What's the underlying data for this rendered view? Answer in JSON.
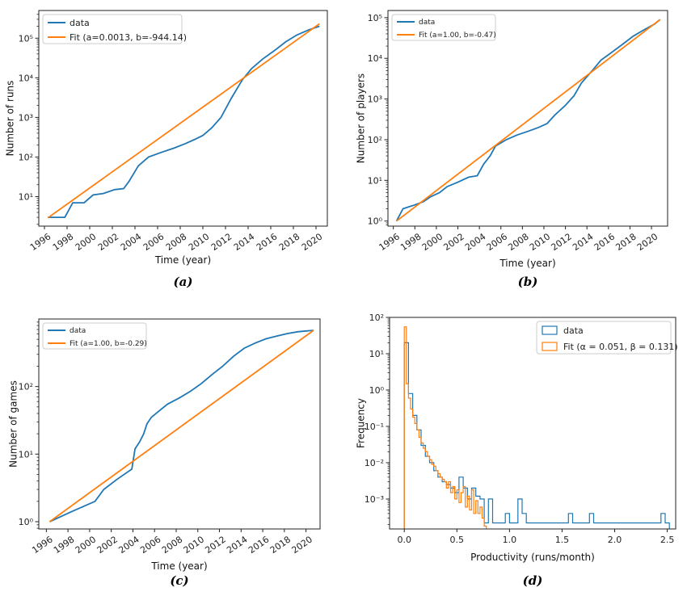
{
  "chart_data": [
    {
      "id": "a",
      "type": "line",
      "caption": "(a)",
      "xlabel": "Time (year)",
      "ylabel": "Number of runs",
      "yscale": "log",
      "xlim": [
        1995.5,
        2021
      ],
      "ylim": [
        1.8,
        500000
      ],
      "xticks": [
        1996,
        1998,
        2000,
        2002,
        2004,
        2006,
        2008,
        2010,
        2012,
        2014,
        2016,
        2018,
        2020
      ],
      "yticks": [
        {
          "value": 10,
          "label": "10¹"
        },
        {
          "value": 100,
          "label": "10²"
        },
        {
          "value": 1000,
          "label": "10³"
        },
        {
          "value": 10000,
          "label": "10⁴"
        },
        {
          "value": 100000,
          "label": "10⁵"
        }
      ],
      "legend_position": "top-left",
      "series": [
        {
          "name": "data",
          "color": "#1f77b4",
          "x": [
            1996.3,
            1997.8,
            1998.5,
            1999.5,
            2000.3,
            2001.2,
            2002.2,
            2003,
            2003.5,
            2004.3,
            2005.2,
            2006.3,
            2007.5,
            2008.5,
            2009.3,
            2010,
            2010.8,
            2011.6,
            2012.5,
            2013.5,
            2014.3,
            2015.3,
            2016.3,
            2017.3,
            2018.3,
            2019.3,
            2020.3
          ],
          "y": [
            3,
            3,
            7,
            7,
            11,
            12,
            15,
            16,
            25,
            60,
            100,
            130,
            170,
            220,
            280,
            350,
            550,
            1000,
            3000,
            9000,
            17000,
            30000,
            48000,
            80000,
            120000,
            160000,
            200000
          ]
        },
        {
          "name": "Fit (a=0.0013, b=-944.14)",
          "color": "#ff7f0e",
          "x": [
            1996.3,
            2020.3
          ],
          "y": [
            2.9,
            230000
          ]
        }
      ]
    },
    {
      "id": "b",
      "type": "line",
      "caption": "(b)",
      "xlabel": "Time (year)",
      "ylabel": "Number of players",
      "yscale": "log",
      "xlim": [
        1995.5,
        2021.5
      ],
      "ylim": [
        0.75,
        150000
      ],
      "xticks": [
        1996,
        1998,
        2000,
        2002,
        2004,
        2006,
        2008,
        2010,
        2012,
        2014,
        2016,
        2018,
        2020
      ],
      "yticks": [
        {
          "value": 1,
          "label": "10⁰"
        },
        {
          "value": 10,
          "label": "10¹"
        },
        {
          "value": 100,
          "label": "10²"
        },
        {
          "value": 1000,
          "label": "10³"
        },
        {
          "value": 10000,
          "label": "10⁴"
        },
        {
          "value": 100000,
          "label": "10⁵"
        }
      ],
      "legend_position": "top-left",
      "series": [
        {
          "name": "data",
          "color": "#1f77b4",
          "x": [
            1996.3,
            1996.9,
            1998,
            1998.8,
            1999.5,
            2000.3,
            2001,
            2002,
            2003,
            2003.8,
            2004.4,
            2005,
            2005.5,
            2006.5,
            2007.5,
            2008.5,
            2009.5,
            2010.3,
            2011,
            2012,
            2012.8,
            2013.5,
            2014.5,
            2015.3,
            2016.3,
            2017.3,
            2018.3,
            2019.3,
            2020.3,
            2020.8
          ],
          "y": [
            1,
            2,
            2.5,
            3,
            4,
            5,
            7,
            9,
            12,
            13,
            25,
            40,
            70,
            100,
            130,
            160,
            200,
            250,
            400,
            700,
            1200,
            2500,
            5000,
            9000,
            14000,
            22000,
            35000,
            50000,
            70000,
            90000
          ]
        },
        {
          "name": "Fit (a=1.00, b=-0.47)",
          "color": "#ff7f0e",
          "x": [
            1996.3,
            2020.8
          ],
          "y": [
            1,
            90000
          ]
        }
      ]
    },
    {
      "id": "c",
      "type": "line",
      "caption": "(c)",
      "xlabel": "Time (year)",
      "ylabel": "Number of games",
      "yscale": "log",
      "xlim": [
        1995.3,
        2021.3
      ],
      "ylim": [
        0.78,
        1000
      ],
      "xticks": [
        1996,
        1998,
        2000,
        2002,
        2004,
        2006,
        2008,
        2010,
        2012,
        2014,
        2016,
        2018,
        2020
      ],
      "yticks": [
        {
          "value": 1,
          "label": "10⁰"
        },
        {
          "value": 10,
          "label": "10¹"
        },
        {
          "value": 100,
          "label": "10²"
        }
      ],
      "legend_position": "top-left",
      "series": [
        {
          "name": "data",
          "color": "#1f77b4",
          "x": [
            1996.3,
            1998.3,
            2000.5,
            2001.3,
            2002.5,
            2003.9,
            2004.2,
            2004.6,
            2005,
            2005.3,
            2005.7,
            2006.3,
            2007.2,
            2008.3,
            2009.3,
            2010.3,
            2011.3,
            2012.3,
            2013.3,
            2014.3,
            2015.3,
            2016.3,
            2017.3,
            2018.3,
            2019.3,
            2020.7
          ],
          "y": [
            1,
            1.4,
            2,
            3,
            4.2,
            6,
            12,
            15,
            20,
            28,
            35,
            42,
            55,
            68,
            85,
            110,
            150,
            200,
            280,
            370,
            440,
            510,
            560,
            610,
            650,
            680
          ]
        },
        {
          "name": "Fit (a=1.00, b=-0.29)",
          "color": "#ff7f0e",
          "x": [
            1996.3,
            2020.7
          ],
          "y": [
            1,
            680
          ]
        }
      ]
    },
    {
      "id": "d",
      "type": "step",
      "caption": "(d)",
      "xlabel": "Productivity (runs/month)",
      "ylabel": "Frequency",
      "yscale": "log",
      "xlim": [
        -0.14,
        2.58
      ],
      "ylim": [
        0.00015,
        100
      ],
      "xticks": [
        0.0,
        0.5,
        1.0,
        1.5,
        2.0,
        2.5
      ],
      "xtick_labels": [
        "0.0",
        "0.5",
        "1.0",
        "1.5",
        "2.0",
        "2.5"
      ],
      "yticks": [
        {
          "value": 0.001,
          "label": "10⁻³"
        },
        {
          "value": 0.01,
          "label": "10⁻²"
        },
        {
          "value": 0.1,
          "label": "10⁻¹"
        },
        {
          "value": 1,
          "label": "10⁰"
        },
        {
          "value": 10,
          "label": "10¹"
        },
        {
          "value": 100,
          "label": "10²"
        }
      ],
      "legend_position": "top-right",
      "series": [
        {
          "name": "data",
          "color": "#1f77b4",
          "x": [
            0,
            0.04,
            0.08,
            0.12,
            0.16,
            0.2,
            0.24,
            0.28,
            0.32,
            0.36,
            0.4,
            0.44,
            0.48,
            0.52,
            0.56,
            0.6,
            0.64,
            0.68,
            0.72,
            0.76,
            0.8,
            0.84,
            0.88,
            0.92,
            0.96,
            1.0,
            1.04,
            1.08,
            1.12,
            1.16,
            1.2,
            1.24,
            1.28,
            1.32,
            1.36,
            1.4,
            1.44,
            1.48,
            1.52,
            1.56,
            1.6,
            1.64,
            1.68,
            1.72,
            1.76,
            1.8,
            2.4,
            2.44,
            2.48
          ],
          "y": [
            20,
            0.8,
            0.2,
            0.08,
            0.03,
            0.015,
            0.01,
            0.006,
            0.004,
            0.003,
            0.0025,
            0.002,
            0.0015,
            0.004,
            0.002,
            0.001,
            0.002,
            0.0012,
            0.001,
            0.00022,
            0.001,
            0.00022,
            0.00022,
            0.00022,
            0.0004,
            0.00022,
            0.00022,
            0.001,
            0.0004,
            0.00022,
            0.00022,
            0.00022,
            0.00022,
            0.00022,
            0.00022,
            0.00022,
            0.00022,
            0.00022,
            0.00022,
            0.0004,
            0.00022,
            0.00022,
            0.00022,
            0.00022,
            0.0004,
            0.00022,
            0.00022,
            0.0004,
            0.00022
          ]
        },
        {
          "name": "Fit (α = 0.051, β = 0.131)",
          "color": "#ff7f0e",
          "x": [
            0,
            0.02,
            0.04,
            0.06,
            0.08,
            0.1,
            0.12,
            0.14,
            0.16,
            0.18,
            0.2,
            0.22,
            0.24,
            0.26,
            0.28,
            0.3,
            0.32,
            0.34,
            0.36,
            0.38,
            0.4,
            0.42,
            0.44,
            0.46,
            0.48,
            0.5,
            0.52,
            0.54,
            0.56,
            0.58,
            0.6,
            0.62,
            0.64,
            0.66,
            0.68,
            0.7,
            0.72,
            0.74,
            0.76
          ],
          "y": [
            55,
            1.5,
            0.6,
            0.3,
            0.18,
            0.12,
            0.08,
            0.05,
            0.035,
            0.025,
            0.02,
            0.015,
            0.012,
            0.009,
            0.008,
            0.006,
            0.005,
            0.004,
            0.0035,
            0.003,
            0.002,
            0.003,
            0.0015,
            0.0022,
            0.001,
            0.0018,
            0.0008,
            0.0015,
            0.0022,
            0.0006,
            0.0012,
            0.0005,
            0.0018,
            0.0004,
            0.0009,
            0.0004,
            0.0006,
            0.0003,
            0.00018
          ]
        }
      ]
    }
  ]
}
